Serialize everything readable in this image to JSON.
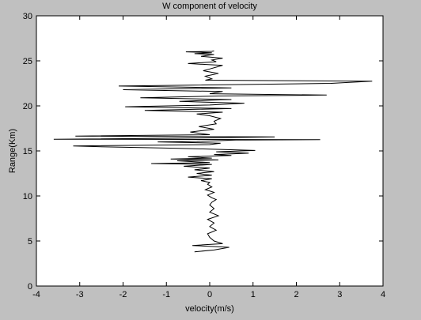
{
  "chart_data": {
    "type": "line",
    "title": "W component of velocity",
    "xlabel": "velocity(m/s)",
    "ylabel": "Range(Km)",
    "xlim": [
      -4,
      4
    ],
    "ylim": [
      0,
      30
    ],
    "xticks": [
      -4,
      -3,
      -2,
      -1,
      0,
      1,
      2,
      3,
      4
    ],
    "yticks": [
      0,
      5,
      10,
      15,
      20,
      25,
      30
    ],
    "grid": false,
    "colors": {
      "figure_bg": "#c0c0c0",
      "axes_bg": "#ffffff",
      "line": "#000000"
    },
    "series": [
      {
        "x": [
          -0.35,
          0.1,
          0.45,
          -0.4,
          0.3,
          0.1,
          0.0,
          -0.05,
          0.15,
          0.0,
          0.1,
          -0.05,
          0.2,
          0.0,
          0.1,
          0.0,
          0.05,
          0.15,
          0.05,
          -0.05,
          0.1,
          -0.1,
          0.05,
          -0.05,
          0.0,
          -0.2,
          0.05,
          -0.5,
          0.05,
          -0.3,
          0.1,
          -0.35,
          0.0,
          -0.6,
          0.05,
          -1.35,
          0.0,
          -0.75,
          0.2,
          -0.9,
          0.05,
          -0.5,
          0.5,
          0.1,
          0.9,
          0.15,
          1.05,
          0.0,
          -0.8,
          -2.4,
          -3.15,
          0.0,
          0.25,
          -1.2,
          -0.3,
          0.6,
          2.55,
          -3.6,
          0.05,
          1.5,
          -3.1,
          0.0,
          -0.45,
          0.1,
          -0.25,
          0.15,
          0.1,
          0.25,
          0.0,
          -0.3,
          0.3,
          -1.5,
          0.5,
          -1.95,
          0.0,
          0.8,
          -0.7,
          0.5,
          -1.6,
          0.2,
          2.7,
          0.0,
          0.3,
          -2.0,
          0.5,
          -2.1,
          2.8,
          3.75,
          -0.1,
          0.05,
          -0.1,
          0.2,
          -0.15,
          0.0,
          0.15,
          0.3,
          -0.5,
          0.15,
          0.05,
          0.3,
          -0.2,
          0.1,
          -0.35,
          0.05,
          -0.55,
          0.05,
          0.1
        ],
        "y": [
          3.8,
          4.0,
          4.3,
          4.5,
          4.7,
          5.0,
          5.4,
          5.8,
          6.2,
          6.6,
          7.0,
          7.4,
          7.8,
          8.2,
          8.6,
          9.0,
          9.3,
          9.6,
          9.8,
          10.1,
          10.4,
          10.7,
          11.0,
          11.3,
          11.5,
          11.7,
          11.9,
          12.1,
          12.3,
          12.5,
          12.7,
          12.9,
          13.1,
          13.3,
          13.5,
          13.6,
          13.7,
          13.9,
          14.0,
          14.1,
          14.2,
          14.35,
          14.5,
          14.6,
          14.75,
          14.9,
          15.05,
          15.2,
          15.3,
          15.45,
          15.55,
          15.7,
          15.85,
          16.0,
          16.05,
          16.2,
          16.25,
          16.3,
          16.45,
          16.55,
          16.65,
          16.8,
          17.1,
          17.4,
          17.7,
          18.0,
          18.3,
          18.6,
          18.9,
          19.1,
          19.3,
          19.5,
          19.7,
          19.9,
          20.1,
          20.3,
          20.5,
          20.7,
          20.9,
          21.1,
          21.2,
          21.35,
          21.6,
          21.8,
          22.0,
          22.2,
          22.5,
          22.75,
          22.85,
          23.0,
          23.3,
          23.6,
          23.9,
          24.1,
          24.3,
          24.5,
          24.7,
          24.9,
          25.1,
          25.3,
          25.5,
          25.7,
          25.8,
          25.9,
          26.0,
          26.05,
          26.1
        ]
      }
    ]
  }
}
